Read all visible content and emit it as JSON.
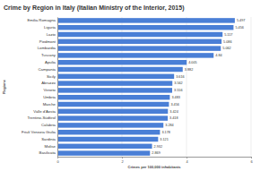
{
  "chart_data": {
    "type": "bar",
    "orientation": "horizontal",
    "title": "Crime by Region in Italy (Italian Ministry of the Interior, 2015)",
    "x_label": "Crimes per 100,000 inhabitants",
    "y_label": "Regione",
    "categories": [
      "Emilia Romagna",
      "Liguria",
      "Lazio",
      "Piedmont",
      "Lombardia",
      "Tuscany",
      "Apulia",
      "Campania",
      "Sicily",
      "Abruzzo",
      "Veneto",
      "Umbria",
      "Marche",
      "Valle d'Aosta",
      "Trentino-Südtirol",
      "Calabria",
      "Friuli Venezia Giulia",
      "Sardinia",
      "Molise",
      "Basilicata"
    ],
    "values": [
      5.497,
      5.456,
      5.117,
      5.086,
      5.062,
      4.84,
      4.005,
      3.882,
      3.616,
      3.562,
      3.556,
      3.483,
      3.456,
      3.424,
      3.418,
      3.284,
      3.178,
      3.121,
      2.932,
      2.869
    ],
    "color": "#4a7fd6",
    "xlim": [
      0,
      6
    ],
    "xticks": [
      0,
      2,
      4,
      6
    ],
    "grid": true,
    "data_labels": true
  }
}
